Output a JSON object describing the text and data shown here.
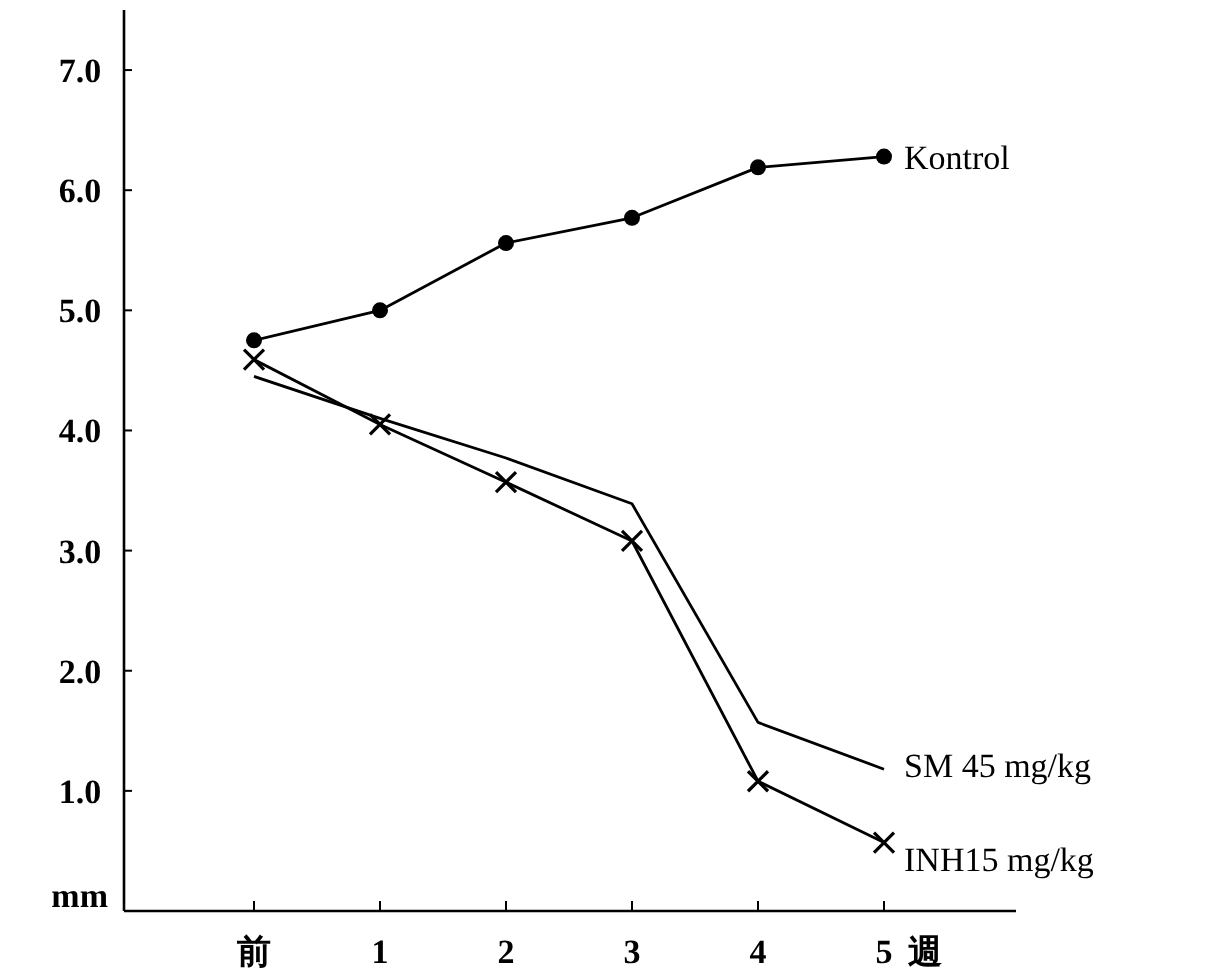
{
  "chart_data": {
    "type": "line",
    "ylabel": "mm",
    "xlabel": "週",
    "categories": [
      "前",
      "1",
      "2",
      "3",
      "4",
      "5"
    ],
    "ylim": [
      0,
      7.5
    ],
    "yticks": [
      {
        "value": 1,
        "label": "1.0"
      },
      {
        "value": 2,
        "label": "2.0"
      },
      {
        "value": 3,
        "label": "3.0"
      },
      {
        "value": 4,
        "label": "4.0"
      },
      {
        "value": 5,
        "label": "5.0"
      },
      {
        "value": 6,
        "label": "6.0"
      },
      {
        "value": 7,
        "label": "7.0"
      }
    ],
    "grid": false,
    "series": [
      {
        "name": "Kontrol",
        "color": "#000000",
        "marker": "circle",
        "values": [
          4.75,
          5.0,
          5.56,
          5.77,
          6.19,
          6.28
        ]
      },
      {
        "name": "SM  45 mg/kg",
        "color": "#000000",
        "marker": "none",
        "values": [
          4.45,
          4.1,
          3.77,
          3.39,
          1.57,
          1.18
        ]
      },
      {
        "name": "INH15 mg/kg",
        "color": "#000000",
        "marker": "cross",
        "values": [
          4.59,
          4.05,
          3.57,
          3.08,
          1.08,
          0.57
        ]
      }
    ]
  }
}
